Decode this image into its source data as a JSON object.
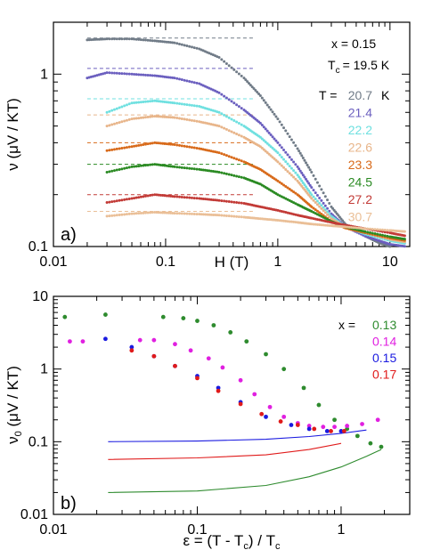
{
  "chart_data": [
    {
      "type": "scatter",
      "panel_label": "a)",
      "xlabel": "H (T)",
      "ylabel": "ν (μV / KT)",
      "xscale": "log",
      "yscale": "log",
      "xlim": [
        0.01,
        15
      ],
      "ylim": [
        0.1,
        2
      ],
      "xticklabels": [
        "0.01",
        "0.1",
        "1",
        "10"
      ],
      "yticklabels": [
        "0.1",
        "1"
      ],
      "annotations": [
        "x = 0.15",
        "T",
        "c",
        "= 19.5 K"
      ],
      "legend_title": "T =",
      "legend_unit": "K",
      "legend_placement": "right",
      "grid": false,
      "series": [
        {
          "name": "20.7",
          "color": "#707b87",
          "plateau": 1.62,
          "x": [
            0.02,
            0.03,
            0.05,
            0.08,
            0.12,
            0.2,
            0.3,
            0.5,
            0.7,
            1.0,
            1.5,
            2.0,
            3.0,
            4.0,
            6.0,
            8.0,
            10.0,
            14.0
          ],
          "y": [
            1.58,
            1.6,
            1.6,
            1.56,
            1.52,
            1.4,
            1.25,
            0.95,
            0.75,
            0.55,
            0.37,
            0.27,
            0.17,
            0.135,
            0.115,
            0.105,
            0.1,
            0.095
          ]
        },
        {
          "name": "21.4",
          "color": "#6b5fbf",
          "plateau": 1.08,
          "x": [
            0.02,
            0.03,
            0.05,
            0.08,
            0.12,
            0.2,
            0.3,
            0.5,
            0.7,
            1.0,
            1.5,
            2.0,
            3.0,
            4.0,
            6.0,
            8.0,
            10.0,
            14.0
          ],
          "y": [
            0.95,
            1.02,
            1.0,
            0.98,
            0.95,
            0.88,
            0.78,
            0.62,
            0.52,
            0.4,
            0.29,
            0.22,
            0.155,
            0.13,
            0.115,
            0.108,
            0.103,
            0.1
          ]
        },
        {
          "name": "22.2",
          "color": "#6fe0e0",
          "plateau": 0.72,
          "x": [
            0.03,
            0.05,
            0.08,
            0.12,
            0.2,
            0.3,
            0.5,
            0.7,
            1.0,
            1.5,
            2.0,
            3.0,
            4.0,
            6.0,
            10.0,
            14.0
          ],
          "y": [
            0.6,
            0.68,
            0.7,
            0.68,
            0.65,
            0.6,
            0.5,
            0.43,
            0.35,
            0.26,
            0.2,
            0.15,
            0.13,
            0.118,
            0.108,
            0.104
          ]
        },
        {
          "name": "22.6",
          "color": "#e8b58a",
          "plateau": 0.58,
          "x": [
            0.03,
            0.05,
            0.08,
            0.12,
            0.2,
            0.3,
            0.5,
            0.7,
            1.0,
            1.5,
            2.0,
            3.0,
            4.0,
            6.0,
            10.0,
            14.0
          ],
          "y": [
            0.5,
            0.55,
            0.57,
            0.56,
            0.53,
            0.5,
            0.43,
            0.38,
            0.31,
            0.24,
            0.19,
            0.145,
            0.13,
            0.12,
            0.11,
            0.106
          ]
        },
        {
          "name": "23.3",
          "color": "#d86a1a",
          "plateau": 0.4,
          "x": [
            0.03,
            0.05,
            0.08,
            0.12,
            0.2,
            0.3,
            0.5,
            0.7,
            1.0,
            1.5,
            2.0,
            3.0,
            4.0,
            6.0,
            10.0,
            14.0
          ],
          "y": [
            0.36,
            0.38,
            0.4,
            0.39,
            0.37,
            0.35,
            0.31,
            0.28,
            0.24,
            0.2,
            0.17,
            0.14,
            0.128,
            0.12,
            0.112,
            0.108
          ]
        },
        {
          "name": "24.5",
          "color": "#2a8a22",
          "plateau": 0.3,
          "x": [
            0.03,
            0.05,
            0.08,
            0.12,
            0.2,
            0.3,
            0.5,
            0.7,
            1.0,
            1.5,
            2.0,
            3.0,
            4.0,
            6.0,
            10.0,
            14.0
          ],
          "y": [
            0.27,
            0.29,
            0.3,
            0.29,
            0.28,
            0.27,
            0.25,
            0.23,
            0.2,
            0.175,
            0.16,
            0.14,
            0.13,
            0.122,
            0.114,
            0.11
          ]
        },
        {
          "name": "27.2",
          "color": "#c23a36",
          "plateau": 0.2,
          "x": [
            0.03,
            0.05,
            0.08,
            0.12,
            0.2,
            0.3,
            0.5,
            0.7,
            1.0,
            1.5,
            2.0,
            3.0,
            4.0,
            6.0,
            10.0,
            14.0
          ],
          "y": [
            0.18,
            0.19,
            0.2,
            0.195,
            0.19,
            0.185,
            0.178,
            0.17,
            0.162,
            0.152,
            0.146,
            0.138,
            0.133,
            0.127,
            0.12,
            0.115
          ]
        },
        {
          "name": "30.7",
          "color": "#eabf97",
          "plateau": 0.16,
          "x": [
            0.03,
            0.05,
            0.08,
            0.12,
            0.2,
            0.3,
            0.5,
            0.7,
            1.0,
            1.5,
            2.0,
            3.0,
            4.0,
            6.0,
            10.0,
            14.0
          ],
          "y": [
            0.15,
            0.155,
            0.158,
            0.156,
            0.154,
            0.152,
            0.148,
            0.145,
            0.142,
            0.138,
            0.135,
            0.132,
            0.13,
            0.127,
            0.124,
            0.122
          ]
        }
      ]
    },
    {
      "type": "scatter",
      "panel_label": "b)",
      "xlabel": "ε = (T - T",
      "xlabel_sub": "c",
      "xlabel_tail": ") / T",
      "ylabel_main": "ν",
      "ylabel_sub": "0",
      "ylabel_tail": " (μV / KT)",
      "xscale": "log",
      "yscale": "log",
      "xlim": [
        0.01,
        3
      ],
      "ylim": [
        0.01,
        10
      ],
      "xticklabels": [
        "0.01",
        "0.1",
        "1"
      ],
      "yticklabels": [
        "0.01",
        "0.1",
        "1",
        "10"
      ],
      "legend_title": "x =",
      "legend_placement": "top-right",
      "grid": false,
      "series": [
        {
          "name": "0.13",
          "color": "#2e8b2e",
          "x": [
            0.012,
            0.023,
            0.058,
            0.08,
            0.1,
            0.13,
            0.17,
            0.22,
            0.3,
            0.4,
            0.55,
            0.7,
            0.9,
            1.1,
            1.3,
            1.6,
            1.9
          ],
          "y": [
            5.2,
            5.6,
            5.2,
            5.0,
            4.6,
            4.0,
            3.2,
            2.4,
            1.6,
            1.0,
            0.55,
            0.32,
            0.2,
            0.15,
            0.12,
            0.095,
            0.085
          ],
          "fit_x": [
            0.024,
            0.1,
            0.3,
            0.6,
            1.0,
            1.5,
            1.9
          ],
          "fit_y": [
            0.02,
            0.021,
            0.025,
            0.033,
            0.045,
            0.063,
            0.078
          ]
        },
        {
          "name": "0.14",
          "color": "#e020e0",
          "x": [
            0.013,
            0.016,
            0.04,
            0.05,
            0.07,
            0.09,
            0.12,
            0.15,
            0.2,
            0.25,
            0.32,
            0.4,
            0.5,
            0.6,
            0.75,
            0.9,
            1.1,
            1.4,
            1.8
          ],
          "y": [
            2.4,
            2.4,
            2.5,
            2.5,
            2.2,
            1.8,
            1.4,
            1.05,
            0.7,
            0.45,
            0.3,
            0.22,
            0.18,
            0.165,
            0.16,
            0.16,
            0.165,
            0.175,
            0.2
          ],
          "fit_x": [],
          "fit_y": []
        },
        {
          "name": "0.15",
          "color": "#1a1ae0",
          "x": [
            0.023,
            0.035,
            0.05,
            0.07,
            0.1,
            0.14,
            0.2,
            0.3,
            0.45,
            0.6,
            0.8,
            1.0
          ],
          "y": [
            2.6,
            2.0,
            1.5,
            1.1,
            0.8,
            0.55,
            0.35,
            0.22,
            0.17,
            0.15,
            0.14,
            0.14
          ],
          "fit_x": [
            0.024,
            0.1,
            0.3,
            0.6,
            1.0,
            1.5
          ],
          "fit_y": [
            0.1,
            0.102,
            0.108,
            0.118,
            0.13,
            0.145
          ]
        },
        {
          "name": "0.17",
          "color": "#e01a1a",
          "x": [
            0.035,
            0.05,
            0.07,
            0.1,
            0.14,
            0.2,
            0.28,
            0.38,
            0.5,
            0.65,
            0.85,
            1.05
          ],
          "y": [
            1.8,
            1.5,
            1.1,
            0.75,
            0.5,
            0.33,
            0.24,
            0.19,
            0.17,
            0.15,
            0.14,
            0.14
          ],
          "fit_x": [
            0.024,
            0.1,
            0.3,
            0.6,
            1.0
          ],
          "fit_y": [
            0.057,
            0.06,
            0.066,
            0.078,
            0.095
          ]
        }
      ]
    }
  ]
}
